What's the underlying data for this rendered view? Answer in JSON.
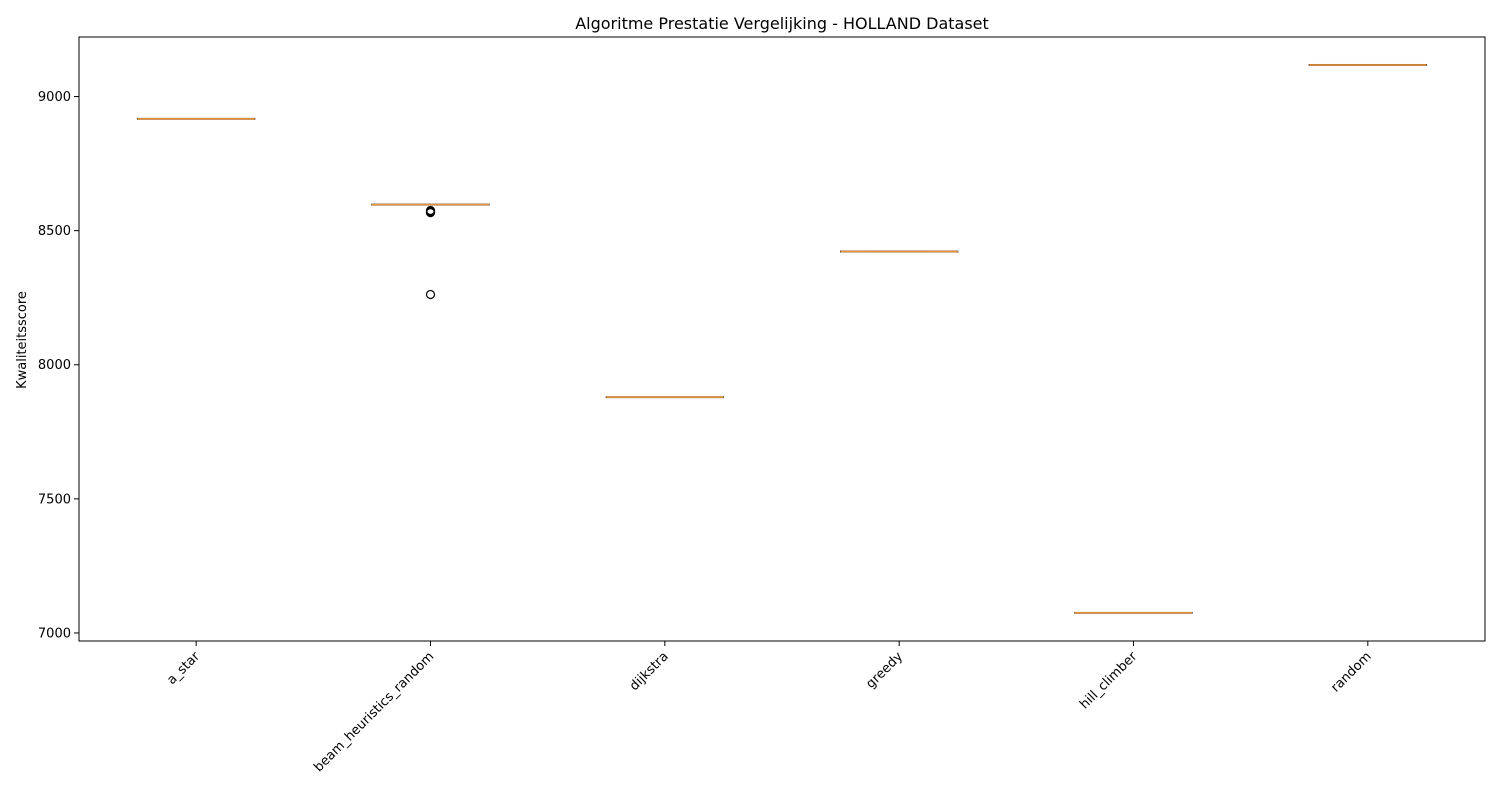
{
  "chart_data": {
    "type": "box",
    "title": "Algoritme Prestatie Vergelijking - HOLLAND Dataset",
    "xlabel": "",
    "ylabel": "Kwaliteitsscore",
    "ylim": [
      6970,
      9222
    ],
    "yticks": [
      7000,
      7500,
      8000,
      8500,
      9000
    ],
    "x_tick_rotation_deg": 45,
    "grid": false,
    "legend": "none",
    "colors": {
      "box": "#000000",
      "median": "#e8923a",
      "flier": "#000000"
    },
    "categories": [
      "a_star",
      "beam_heuristics_random",
      "dijkstra",
      "greedy",
      "hill_climber",
      "random"
    ],
    "boxes": [
      {
        "name": "a_star",
        "whislo": 8917,
        "q1": 8917,
        "median": 8917,
        "q3": 8917,
        "whishi": 8917,
        "fliers": []
      },
      {
        "name": "beam_heuristics_random",
        "whislo": 8597,
        "q1": 8597,
        "median": 8597,
        "q3": 8597,
        "whishi": 8597,
        "fliers": [
          8567,
          8569,
          8571,
          8573,
          8575,
          8262
        ]
      },
      {
        "name": "dijkstra",
        "whislo": 7879,
        "q1": 7879,
        "median": 7879,
        "q3": 7879,
        "whishi": 7879,
        "fliers": []
      },
      {
        "name": "greedy",
        "whislo": 8422,
        "q1": 8422,
        "median": 8422,
        "q3": 8422,
        "whishi": 8422,
        "fliers": []
      },
      {
        "name": "hill_climber",
        "whislo": 7075,
        "q1": 7075,
        "median": 7075,
        "q3": 7075,
        "whishi": 7075,
        "fliers": []
      },
      {
        "name": "random",
        "whislo": 9118,
        "q1": 9118,
        "median": 9118,
        "q3": 9118,
        "whishi": 9118,
        "fliers": []
      }
    ]
  }
}
